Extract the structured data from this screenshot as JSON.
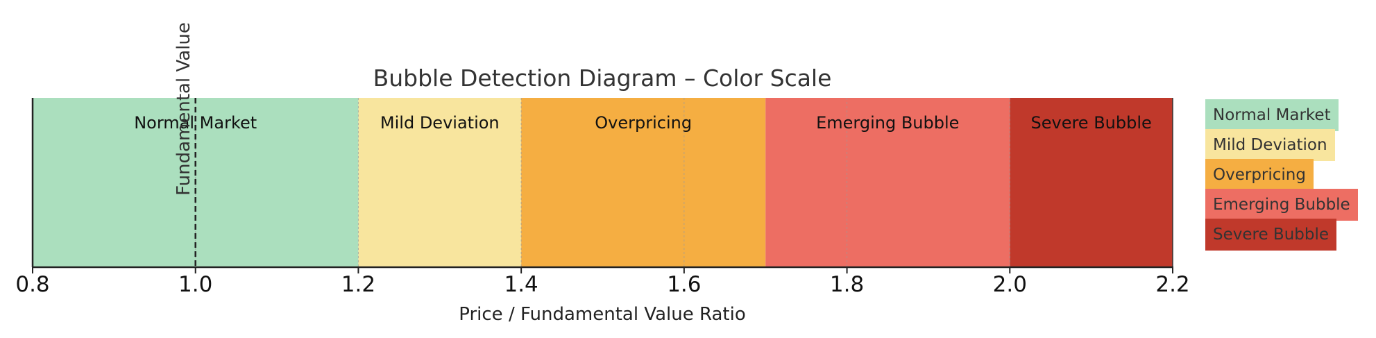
{
  "chart_data": {
    "type": "bar",
    "title": "Bubble Detection Diagram – Color Scale",
    "xlabel": "Price / Fundamental Value Ratio",
    "xlim": [
      0.8,
      2.2
    ],
    "xticks": [
      "0.8",
      "1.0",
      "1.2",
      "1.4",
      "1.6",
      "1.8",
      "2.0",
      "2.2"
    ],
    "xtick_values": [
      0.8,
      1.0,
      1.2,
      1.4,
      1.6,
      1.8,
      2.0,
      2.2
    ],
    "grid": true,
    "legend": "right",
    "bands": [
      {
        "label": "Normal Market",
        "start": 0.8,
        "end": 1.2,
        "color": "#abdfbe"
      },
      {
        "label": "Mild Deviation",
        "start": 1.2,
        "end": 1.4,
        "color": "#f8e59e"
      },
      {
        "label": "Overpricing",
        "start": 1.4,
        "end": 1.7,
        "color": "#f5ae42"
      },
      {
        "label": "Emerging Bubble",
        "start": 1.7,
        "end": 2.0,
        "color": "#ed6e63"
      },
      {
        "label": "Severe Bubble",
        "start": 2.0,
        "end": 2.2,
        "color": "#c0392b"
      }
    ],
    "reference_line": {
      "value": 1.0,
      "label": "Fundamental Value",
      "style": "dashed"
    }
  }
}
